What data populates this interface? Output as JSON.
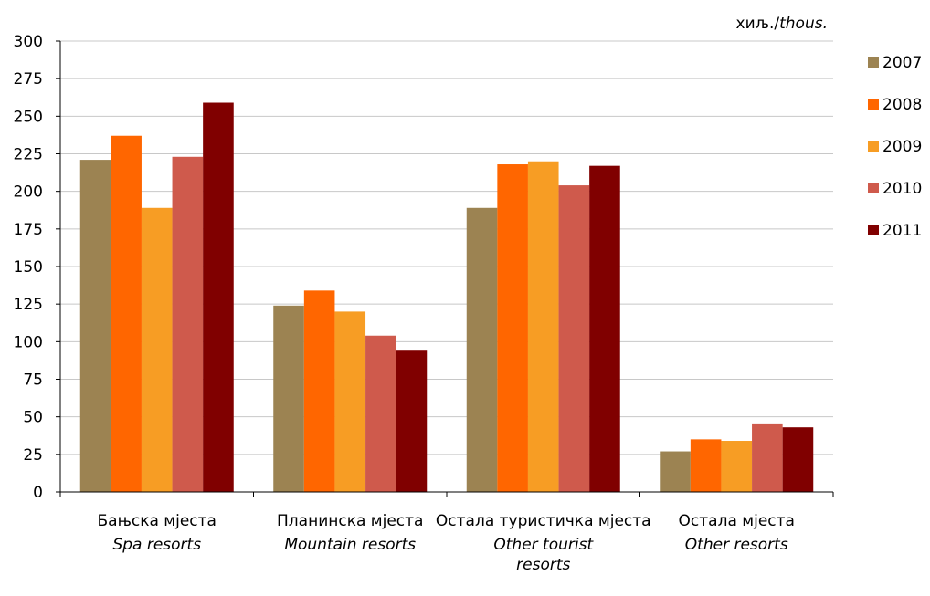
{
  "chart_data": {
    "type": "bar",
    "unit_label": {
      "local": "хиљ./",
      "english": "thous."
    },
    "categories": [
      {
        "local": "Бањска мјеста",
        "english": [
          "Spa resorts"
        ]
      },
      {
        "local": "Планинска мјеста",
        "english": [
          "Mountain resorts"
        ]
      },
      {
        "local": "Остала туристичка мјеста",
        "english": [
          "Other tourist",
          "resorts"
        ]
      },
      {
        "local": "Остала мјеста",
        "english": [
          "Other resorts"
        ]
      }
    ],
    "series": [
      {
        "name": "2007",
        "color": "#9C8352",
        "values": [
          221,
          124,
          189,
          27
        ]
      },
      {
        "name": "2008",
        "color": "#FF6600",
        "values": [
          237,
          134,
          218,
          35
        ]
      },
      {
        "name": "2009",
        "color": "#F79D24",
        "values": [
          189,
          120,
          220,
          34
        ]
      },
      {
        "name": "2010",
        "color": "#CF5A4C",
        "values": [
          223,
          104,
          204,
          45
        ]
      },
      {
        "name": "2011",
        "color": "#800000",
        "values": [
          259,
          94,
          217,
          43
        ]
      }
    ],
    "ylim": [
      0,
      300
    ],
    "yticks": [
      0,
      25,
      50,
      75,
      100,
      125,
      150,
      175,
      200,
      225,
      250,
      275,
      300
    ],
    "grid": true,
    "legend_position": "right"
  }
}
